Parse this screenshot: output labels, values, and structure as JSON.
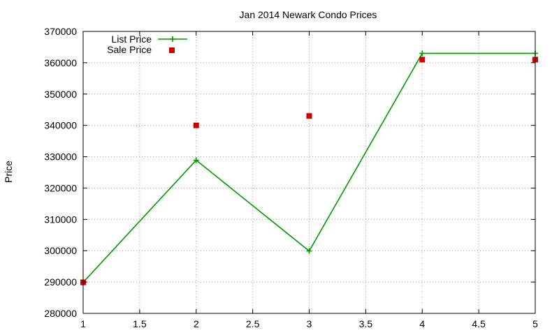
{
  "chart_data": {
    "type": "line",
    "title": "Jan 2014 Newark Condo Prices",
    "xlabel": "",
    "ylabel": "Price",
    "xlim": [
      1,
      5
    ],
    "ylim": [
      280000,
      370000
    ],
    "x_ticks": [
      1,
      1.5,
      2,
      2.5,
      3,
      3.5,
      4,
      4.5,
      5
    ],
    "y_ticks": [
      280000,
      290000,
      300000,
      310000,
      320000,
      330000,
      340000,
      350000,
      360000,
      370000
    ],
    "grid": true,
    "legend_position": "top-left",
    "series": [
      {
        "name": "List Price",
        "style": "line+plus",
        "color": "#009900",
        "x": [
          1,
          2,
          3,
          4,
          5
        ],
        "values": [
          289900,
          328900,
          299900,
          363000,
          363000
        ]
      },
      {
        "name": "Sale Price",
        "style": "square",
        "color": "#cc0000",
        "x": [
          1,
          2,
          3,
          4,
          5
        ],
        "values": [
          289900,
          340000,
          343000,
          361000,
          361000
        ]
      }
    ]
  }
}
